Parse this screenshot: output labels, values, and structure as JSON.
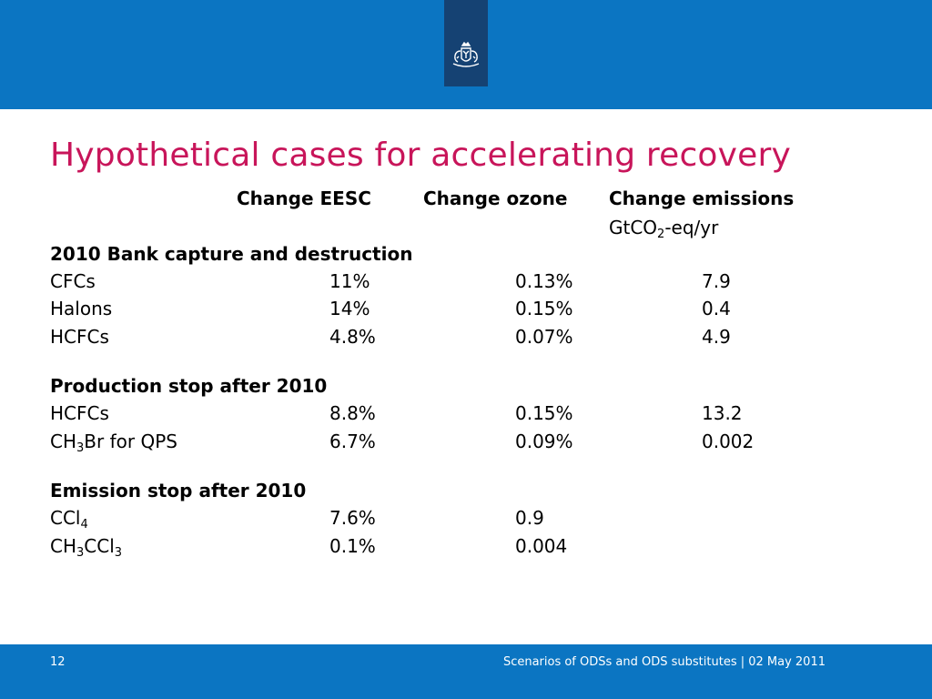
{
  "slide": {
    "title": "Hypothetical cases for accelerating recovery",
    "page_number": "12",
    "footer_text": "Scenarios of ODSs and ODS substitutes | 02 May 2011"
  },
  "table": {
    "headers": {
      "eesc": "Change EESC",
      "ozone": "Change ozone",
      "emissions": "Change emissions",
      "units_prefix": "GtCO",
      "units_sub": "2",
      "units_suffix": "-eq/yr"
    },
    "sections": [
      {
        "heading": "2010 Bank capture and destruction",
        "rows": [
          {
            "label": "CFCs",
            "eesc": "11%",
            "ozone": "0.13%",
            "emissions": "7.9"
          },
          {
            "label": "Halons",
            "eesc": "14%",
            "ozone": "0.15%",
            "emissions": "0.4"
          },
          {
            "label": "HCFCs",
            "eesc": "4.8%",
            "ozone": "0.07%",
            "emissions": "4.9"
          }
        ]
      },
      {
        "heading": "Production stop after 2010",
        "rows": [
          {
            "label": "HCFCs",
            "eesc": "8.8%",
            "ozone": "0.15%",
            "emissions": "13.2"
          },
          {
            "label_pre": "CH",
            "label_sub": "3",
            "label_post": "Br for QPS",
            "eesc": "6.7%",
            "ozone": "0.09%",
            "emissions": "0.002"
          }
        ]
      },
      {
        "heading": "Emission stop after 2010",
        "rows": [
          {
            "label_pre": "CCl",
            "label_sub": "4",
            "eesc": "7.6%",
            "ozone": "0.9"
          },
          {
            "label_pre": "CH",
            "label_sub": "3",
            "label_mid": "CCl",
            "label_sub2": "3",
            "eesc": "0.1%",
            "ozone": "0.004"
          }
        ]
      }
    ]
  },
  "colors": {
    "brand_blue": "#0b75c2",
    "logo_navy": "#154273",
    "title_magenta": "#c8155a"
  },
  "icons": {
    "logo": "coat-of-arms-icon"
  }
}
